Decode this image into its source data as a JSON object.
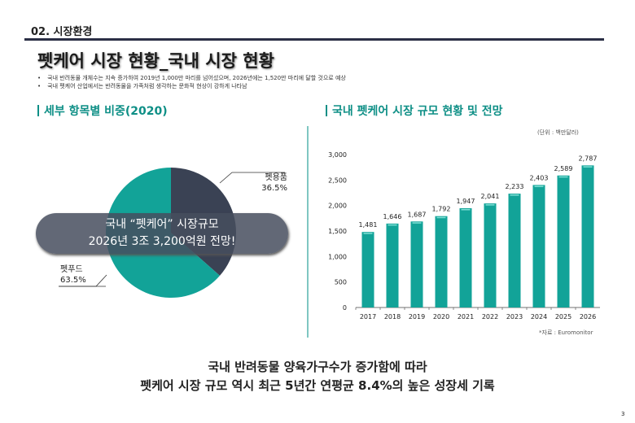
{
  "header": {
    "section": "02. 시장환경",
    "title": "펫케어 시장 현황_국내 시장 현황",
    "bullets": [
      "국내 반려동물 개체수는 지속 증가하여 2019년 1,000만 마리를 넘어섰으며, 2026년에는 1,520만 마리에 달할 것으로 예상",
      "국내 펫케어 산업에서는 반려동물을 가족처럼 생각하는 문화적 현상이 강하게 나타남"
    ]
  },
  "left": {
    "subtitle": "세부 항목별 비중(2020)",
    "banner_line1": "국내 “펫케어” 시장규모",
    "banner_line2": "2026년 3조 3,200억원 전망!"
  },
  "right": {
    "subtitle": "국내 펫케어 시장 규모 현황 및 전망",
    "unit": "(단위 : 백만달러)",
    "source": "*자료 : Euromonitor"
  },
  "conclusion": {
    "line1": "국내 반려동물 양육가구수가 증가함에 따라",
    "line2": "펫케어 시장 규모 역시 최근 5년간 연평균 8.4%의 높은 성장세 기록"
  },
  "page_number": "3",
  "colors": {
    "teal": "#12a398",
    "dark": "#3a4254",
    "accent": "#0e8f86"
  },
  "chart_data": [
    {
      "type": "pie",
      "categories": [
        "펫용품",
        "펫푸드"
      ],
      "values": [
        36.5,
        63.5
      ],
      "labels": [
        "36.5%",
        "63.5%"
      ],
      "colors": [
        "#3a4254",
        "#12a398"
      ]
    },
    {
      "type": "bar",
      "categories": [
        "2017",
        "2018",
        "2019",
        "2020",
        "2021",
        "2022",
        "2023",
        "2024",
        "2025",
        "2026"
      ],
      "values": [
        1481,
        1646,
        1687,
        1792,
        1947,
        2041,
        2233,
        2403,
        2589,
        2787
      ],
      "value_labels": [
        "1,481",
        "1,646",
        "1,687",
        "1,792",
        "1,947",
        "2,041",
        "2,233",
        "2,403",
        "2,589",
        "2,787"
      ],
      "yticks": [
        "0",
        "500",
        "1,000",
        "1,500",
        "2,000",
        "2,500",
        "3,000"
      ],
      "ylim": [
        0,
        3000
      ],
      "grid": false,
      "color": "#12a398"
    }
  ]
}
